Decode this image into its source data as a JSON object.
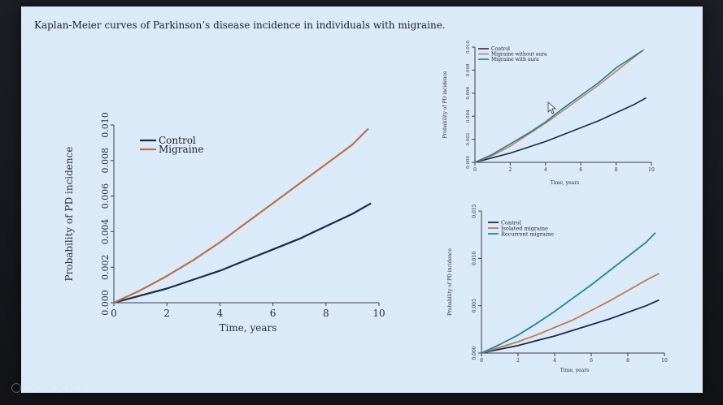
{
  "slide": {
    "title": "Kaplan-Meier curves of Parkinson’s disease incidence in individuals with migraine."
  },
  "colors": {
    "control": "#1e2b45",
    "migraine": "#b9704a",
    "migraine_without_aura": "#c8825a",
    "migraine_with_aura": "#1f7f99",
    "isolated_migraine": "#c07a52",
    "recurrent_migraine": "#1f86a3"
  },
  "chart_data": [
    {
      "type": "line",
      "xlabel": "Time, years",
      "ylabel": "Probability of PD incidence",
      "xlim": [
        0,
        10
      ],
      "ylim": [
        0,
        0.01
      ],
      "xticks": [
        "0",
        "2",
        "4",
        "6",
        "8",
        "10"
      ],
      "yticks": [
        "0.000",
        "0.002",
        "0.004",
        "0.006",
        "0.008",
        "0.010"
      ],
      "legend_position": "top-left",
      "series": [
        {
          "name": "Control",
          "color_key": "control",
          "x": [
            0,
            1,
            2,
            3,
            4,
            5,
            6,
            7,
            8,
            9,
            9.7
          ],
          "y": [
            0,
            0.0004,
            0.0008,
            0.0013,
            0.0018,
            0.0024,
            0.003,
            0.0036,
            0.0043,
            0.005,
            0.0056
          ]
        },
        {
          "name": "Migraine",
          "color_key": "migraine",
          "x": [
            0,
            1,
            2,
            3,
            4,
            5,
            6,
            7,
            8,
            9,
            9.6
          ],
          "y": [
            0,
            0.0007,
            0.0015,
            0.0024,
            0.0034,
            0.0045,
            0.0056,
            0.0067,
            0.0078,
            0.0089,
            0.0098
          ]
        }
      ]
    },
    {
      "type": "line",
      "xlabel": "Time, years",
      "ylabel": "Probability of PD incidence",
      "xlim": [
        0,
        10
      ],
      "ylim": [
        0,
        0.01
      ],
      "xticks": [
        "0",
        "2",
        "4",
        "6",
        "8",
        "10"
      ],
      "yticks": [
        "0.000",
        "0.002",
        "0.004",
        "0.006",
        "0.008",
        "0.010"
      ],
      "legend_position": "top-left",
      "series": [
        {
          "name": "Control",
          "color_key": "control",
          "x": [
            0,
            1,
            2,
            3,
            4,
            5,
            6,
            7,
            8,
            9,
            9.7
          ],
          "y": [
            0,
            0.0004,
            0.0008,
            0.0013,
            0.0018,
            0.0024,
            0.003,
            0.0036,
            0.0043,
            0.005,
            0.0056
          ]
        },
        {
          "name": "Migraine without aura",
          "color_key": "migraine_without_aura",
          "x": [
            0,
            1,
            2,
            3,
            4,
            5,
            6,
            7,
            8,
            9,
            9.6
          ],
          "y": [
            0,
            0.0006,
            0.0014,
            0.0024,
            0.0034,
            0.0045,
            0.0056,
            0.0067,
            0.0079,
            0.0091,
            0.0098
          ]
        },
        {
          "name": "Migraine with aura",
          "color_key": "migraine_with_aura",
          "x": [
            0,
            1,
            2,
            3,
            4,
            5,
            6,
            7,
            8,
            9,
            9.5
          ],
          "y": [
            0,
            0.0007,
            0.0016,
            0.0025,
            0.0035,
            0.0047,
            0.0058,
            0.0069,
            0.0082,
            0.0092,
            0.0097
          ]
        }
      ]
    },
    {
      "type": "line",
      "xlabel": "Time, years",
      "ylabel": "Probability of PD incidence",
      "xlim": [
        0,
        10
      ],
      "ylim": [
        0,
        0.015
      ],
      "xticks": [
        "0",
        "2",
        "4",
        "6",
        "8",
        "10"
      ],
      "yticks": [
        "0.000",
        "0.005",
        "0.010",
        "0.015"
      ],
      "legend_position": "top-left",
      "series": [
        {
          "name": "Control",
          "color_key": "control",
          "x": [
            0,
            1,
            2,
            3,
            4,
            5,
            6,
            7,
            8,
            9,
            9.7
          ],
          "y": [
            0,
            0.0004,
            0.0008,
            0.0013,
            0.0018,
            0.0024,
            0.003,
            0.0036,
            0.0043,
            0.005,
            0.0056
          ]
        },
        {
          "name": "Isolated migraine",
          "color_key": "isolated_migraine",
          "x": [
            0,
            1,
            2,
            3,
            4,
            5,
            6,
            7,
            8,
            9,
            9.7
          ],
          "y": [
            0,
            0.0006,
            0.0012,
            0.0019,
            0.0027,
            0.0035,
            0.0045,
            0.0055,
            0.0066,
            0.0077,
            0.0084
          ]
        },
        {
          "name": "Recurrent migraine",
          "color_key": "recurrent_migraine",
          "x": [
            0,
            1,
            2,
            3,
            4,
            5,
            6,
            7,
            8,
            9,
            9.5
          ],
          "y": [
            0,
            0.0009,
            0.0019,
            0.0031,
            0.0044,
            0.0058,
            0.0072,
            0.0087,
            0.0102,
            0.0117,
            0.0127
          ]
        }
      ]
    }
  ]
}
